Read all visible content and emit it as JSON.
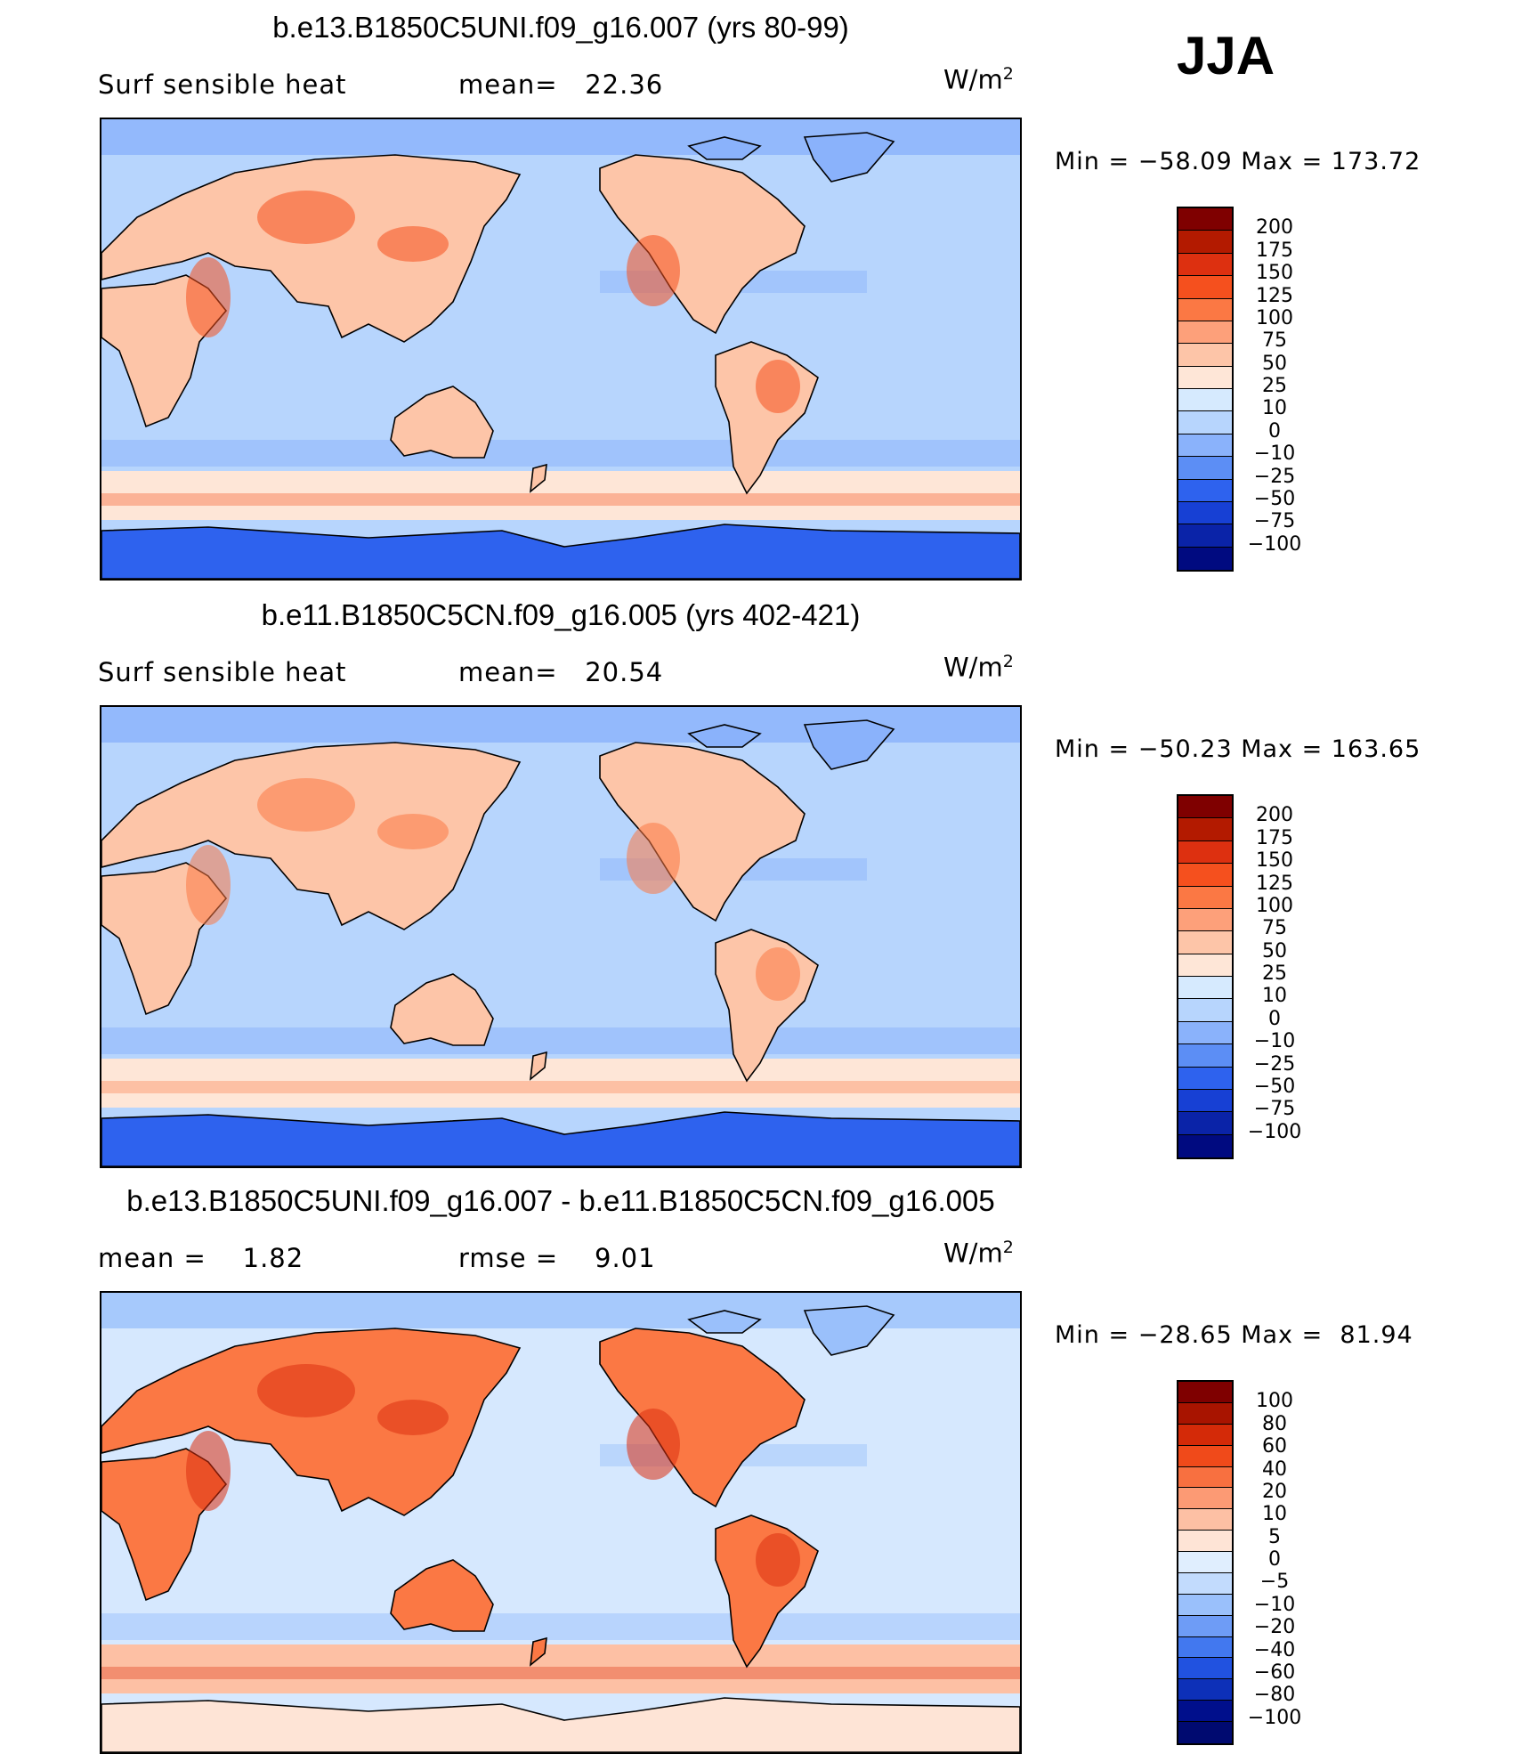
{
  "season": "JJA",
  "units_base": "W/m",
  "units_exp": "2",
  "panels": [
    {
      "title": "b.e13.B1850C5UNI.f09_g16.007 (yrs 80-99)",
      "subtitle_left": "Surf sensible heat",
      "subtitle_mid": "mean=   22.36",
      "minmax": "Min = −58.09 Max = 173.72",
      "colorbar_labels": [
        "200",
        "175",
        "150",
        "125",
        "100",
        "75",
        "50",
        "25",
        "10",
        "0",
        "−10",
        "−25",
        "−50",
        "−75",
        "−100"
      ]
    },
    {
      "title": "b.e11.B1850C5CN.f09_g16.005 (yrs 402-421)",
      "subtitle_left": "Surf sensible heat",
      "subtitle_mid": "mean=   20.54",
      "minmax": "Min = −50.23 Max = 163.65",
      "colorbar_labels": [
        "200",
        "175",
        "150",
        "125",
        "100",
        "75",
        "50",
        "25",
        "10",
        "0",
        "−10",
        "−25",
        "−50",
        "−75",
        "−100"
      ]
    },
    {
      "title": "b.e13.B1850C5UNI.f09_g16.007 - b.e11.B1850C5CN.f09_g16.005",
      "subtitle_left": "mean =    1.82",
      "subtitle_mid": "rmse =    9.01",
      "minmax": "Min = −28.65 Max =  81.94",
      "colorbar_labels": [
        "100",
        "80",
        "60",
        "40",
        "20",
        "10",
        "5",
        "0",
        "−5",
        "−10",
        "−20",
        "−40",
        "−60",
        "−80",
        "−100"
      ]
    }
  ],
  "colors": {
    "abs_scale": [
      "#7f0000",
      "#b31a00",
      "#dd3010",
      "#f5501e",
      "#fb7844",
      "#fda07a",
      "#fdc5a8",
      "#fee6d7",
      "#d6eafe",
      "#b7d5fd",
      "#8ab2fb",
      "#5c8ef5",
      "#2e62ee",
      "#1740d4",
      "#0a23a8",
      "#000a80"
    ],
    "diff_scale": [
      "#7f0000",
      "#a81400",
      "#d42a08",
      "#f04a1a",
      "#f87040",
      "#fc9a74",
      "#fdc0a4",
      "#fee4d6",
      "#e0eefe",
      "#c2dbfd",
      "#9ac0fb",
      "#6e9cf6",
      "#4278ef",
      "#2152e0",
      "#0d30b8",
      "#000f8c",
      "#000a70"
    ]
  }
}
